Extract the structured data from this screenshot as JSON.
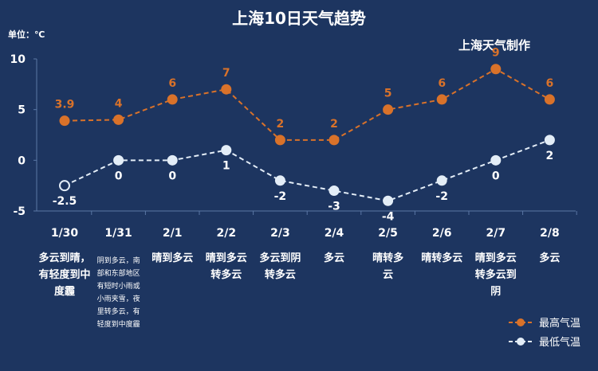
{
  "chart_data": {
    "type": "line",
    "title": "上海10日天气趋势",
    "subtitle": "上海天气制作",
    "unit_label": "单位：℃",
    "categories": [
      "1/30",
      "1/31",
      "2/1",
      "2/2",
      "2/3",
      "2/4",
      "2/5",
      "2/6",
      "2/7",
      "2/8"
    ],
    "ylim": [
      -5,
      10
    ],
    "yticks": [
      10,
      5,
      0,
      -5
    ],
    "series": [
      {
        "name": "最高气温",
        "color": "#d9722a",
        "values": [
          3.9,
          4,
          6,
          7,
          2,
          2,
          5,
          6,
          9,
          6
        ],
        "labels": [
          "3.9",
          "4",
          "6",
          "7",
          "2",
          "2",
          "5",
          "6",
          "9",
          "6"
        ]
      },
      {
        "name": "最低气温",
        "color": "#e3edf7",
        "values": [
          -2.5,
          0,
          0,
          1,
          -2,
          -3,
          -4,
          -2,
          0,
          2
        ],
        "labels": [
          "-2.5",
          "0",
          "0",
          "1",
          "-2",
          "-3",
          "-4",
          "-2",
          "0",
          "2"
        ]
      }
    ],
    "weather": [
      [
        "多云到晴，",
        "有轻度到中",
        "度霾"
      ],
      [
        "阴到多云，南",
        "部和东部地区",
        "有短时小雨或",
        "小雨夹雪，夜",
        "里转多云，有",
        "轻度到中度霾"
      ],
      [
        "晴到多云"
      ],
      [
        "晴到多云",
        "转多云"
      ],
      [
        "多云到阴",
        "转多云"
      ],
      [
        "多云"
      ],
      [
        "晴转多",
        "云"
      ],
      [
        "晴转多云"
      ],
      [
        "晴到多云",
        "转多云到",
        "阴"
      ],
      [
        "多云"
      ]
    ],
    "legend_position": "bottom-right",
    "grid": false
  }
}
